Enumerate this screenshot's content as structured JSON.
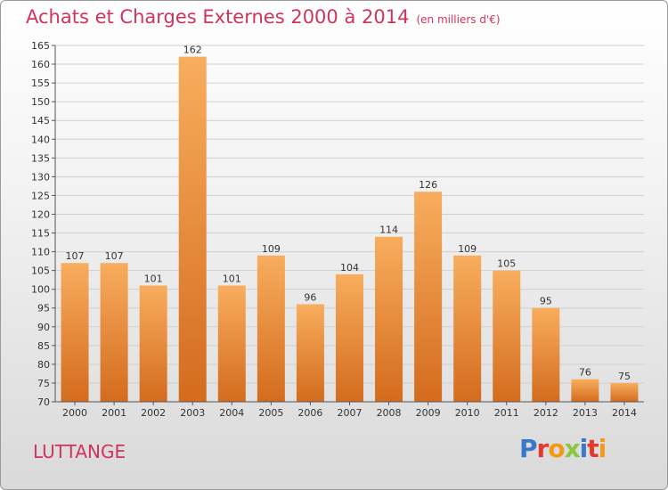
{
  "header": {
    "title": "Achats et Charges Externes 2000 à 2014",
    "unit": "(en milliers d'€)"
  },
  "footer": {
    "commune": "LUTTANGE",
    "brand": "Proxiti"
  },
  "colors": {
    "title": "#d2335b",
    "bar_light": "#f7a95a",
    "bar_dark": "#d86e1e",
    "grid": "#cfcfcf"
  },
  "chart_data": {
    "type": "bar",
    "title": "Achats et Charges Externes 2000 à 2014",
    "subtitle": "(en milliers d'€)",
    "xlabel": "",
    "ylabel": "",
    "categories": [
      "2000",
      "2001",
      "2002",
      "2003",
      "2004",
      "2005",
      "2006",
      "2007",
      "2008",
      "2009",
      "2010",
      "2011",
      "2012",
      "2013",
      "2014"
    ],
    "values": [
      107,
      107,
      101,
      162,
      101,
      109,
      96,
      104,
      114,
      126,
      109,
      105,
      95,
      76,
      75
    ],
    "ylim": [
      70,
      165
    ],
    "yticks": [
      70,
      75,
      80,
      85,
      90,
      95,
      100,
      105,
      110,
      115,
      120,
      125,
      130,
      135,
      140,
      145,
      150,
      155,
      160,
      165
    ],
    "grid": true,
    "data_labels": true
  }
}
